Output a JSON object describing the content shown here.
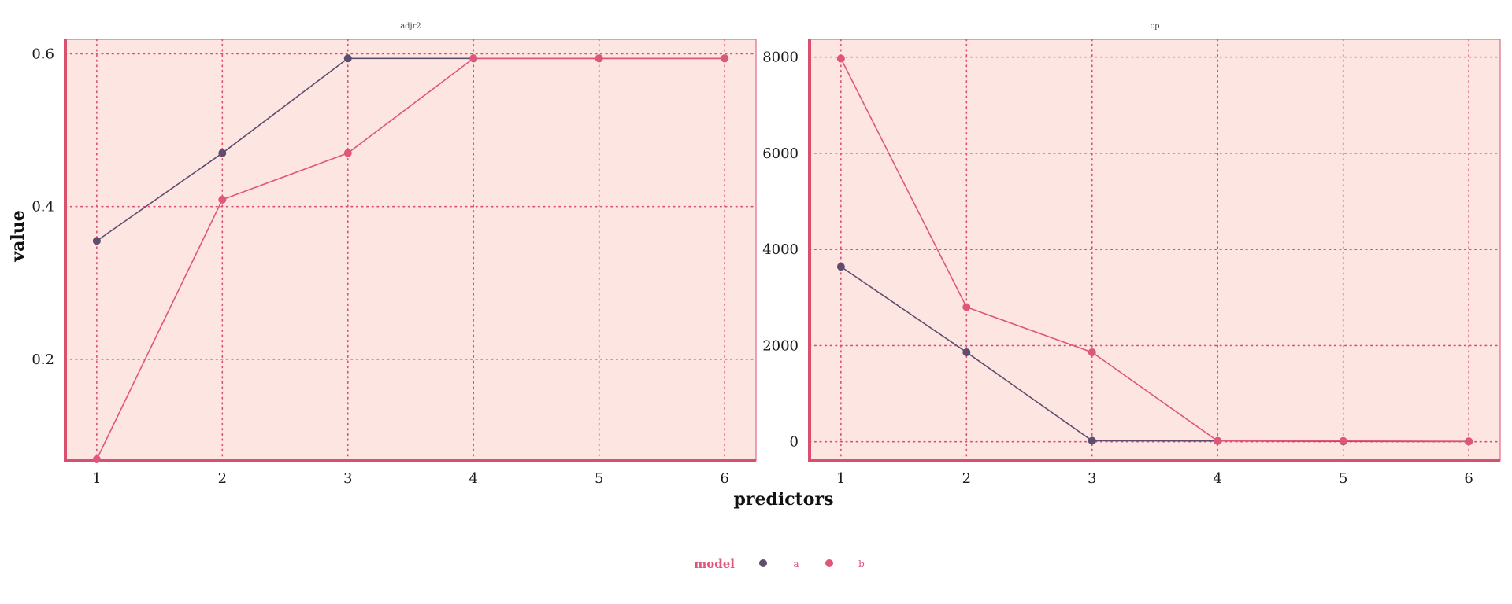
{
  "chart_data": {
    "type": "line",
    "xlabel": "predictors",
    "ylabel": "value",
    "x": [
      1,
      2,
      3,
      4,
      5,
      6
    ],
    "legend": {
      "title": "model",
      "position": "bottom",
      "entries": [
        {
          "label": "a",
          "color": "#5e4d6e"
        },
        {
          "label": "b",
          "color": "#e0557a"
        }
      ]
    },
    "style": {
      "panel_fill": "#fde6e1",
      "grid_color": "#d9506f",
      "border_color": "#d9506f",
      "grid": "dotted",
      "legend_title_color": "#e0557a",
      "legend_label_color": "#e0557a"
    },
    "panels": [
      {
        "title": "adjr2",
        "xlim": [
          0.75,
          6.25
        ],
        "ylim": [
          0.067,
          0.619
        ],
        "yticks": [
          0.2,
          0.4,
          0.6
        ],
        "ytick_labels": [
          "0.2",
          "0.4",
          "0.6"
        ],
        "series": [
          {
            "name": "a",
            "values": [
              0.355,
              0.47,
              0.594,
              0.594,
              0.594,
              0.594
            ]
          },
          {
            "name": "b",
            "values": [
              0.069,
              0.409,
              0.47,
              0.594,
              0.594,
              0.594
            ]
          }
        ]
      },
      {
        "title": "cp",
        "xlim": [
          0.75,
          6.25
        ],
        "ylim": [
          -398,
          8370
        ],
        "yticks": [
          0,
          2000,
          4000,
          6000,
          8000
        ],
        "ytick_labels": [
          "0",
          "2000",
          "4000",
          "6000",
          "8000"
        ],
        "series": [
          {
            "name": "a",
            "values": [
              3640,
              1860,
              20,
              15,
              8,
              5
            ]
          },
          {
            "name": "b",
            "values": [
              7970,
              2800,
              1860,
              15,
              15,
              8
            ]
          }
        ]
      }
    ]
  }
}
